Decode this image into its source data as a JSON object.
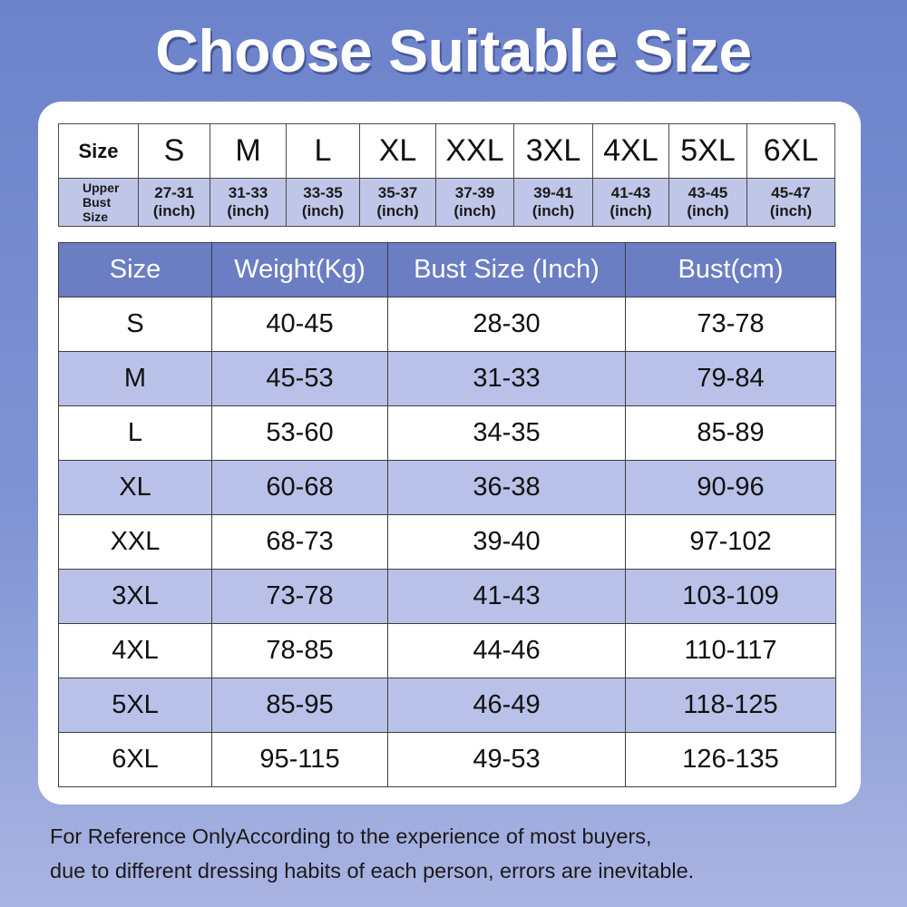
{
  "title": "Choose Suitable Size",
  "top_table": {
    "row1_header": "Size",
    "row2_header": [
      "Upper",
      "Bust",
      "Size"
    ],
    "sizes": [
      "S",
      "M",
      "L",
      "XL",
      "XXL",
      "3XL",
      "4XL",
      "5XL",
      "6XL"
    ],
    "ranges": [
      "27-31",
      "31-33",
      "33-35",
      "35-37",
      "37-39",
      "39-41",
      "41-43",
      "43-45",
      "45-47"
    ],
    "unit": "(inch)"
  },
  "main_table": {
    "headers": [
      "Size",
      "Weight(Kg)",
      "Bust Size (Inch)",
      "Bust(cm)"
    ],
    "rows": [
      [
        "S",
        "40-45",
        "28-30",
        "73-78"
      ],
      [
        "M",
        "45-53",
        "31-33",
        "79-84"
      ],
      [
        "L",
        "53-60",
        "34-35",
        "85-89"
      ],
      [
        "XL",
        "60-68",
        "36-38",
        "90-96"
      ],
      [
        "XXL",
        "68-73",
        "39-40",
        "97-102"
      ],
      [
        "3XL",
        "73-78",
        "41-43",
        "103-109"
      ],
      [
        "4XL",
        "78-85",
        "44-46",
        "110-117"
      ],
      [
        "5XL",
        "85-95",
        "46-49",
        "118-125"
      ],
      [
        "6XL",
        "95-115",
        "49-53",
        "126-135"
      ]
    ]
  },
  "footer": {
    "line1": "For Reference OnlyAccording to the experience of most buyers,",
    "line2": "due to different dressing habits of each person, errors are inevitable."
  },
  "colors": {
    "background": "#7f93d3",
    "header_fill": "#6b7ec4",
    "alt_row_fill": "#b9c1e8"
  }
}
